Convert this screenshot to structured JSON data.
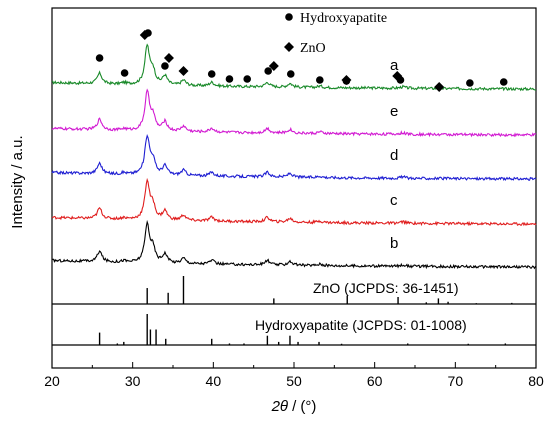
{
  "chart_data": {
    "type": "line",
    "xlabel_var": "2θ",
    "xlabel_unit": "/ (°)",
    "ylabel": "Intensity / a.u.",
    "xlim": [
      20,
      80
    ],
    "x_ticks": [
      "20",
      "30",
      "40",
      "50",
      "60",
      "70",
      "80"
    ],
    "legend": [
      {
        "marker": "circle",
        "label": "Hydroxyapatite"
      },
      {
        "marker": "diamond",
        "label": "ZnO"
      }
    ],
    "series": [
      {
        "name": "a",
        "color": "#1a8a2a",
        "baseline": 0.1,
        "peaks": [
          [
            25.9,
            0.14
          ],
          [
            28.9,
            0.02
          ],
          [
            31.8,
            0.5
          ],
          [
            32.5,
            0.18
          ],
          [
            34.0,
            0.12
          ],
          [
            36.3,
            0.07
          ],
          [
            39.8,
            0.05
          ],
          [
            46.7,
            0.06
          ],
          [
            49.5,
            0.05
          ],
          [
            53.2,
            0.02
          ],
          [
            63.5,
            0.02
          ]
        ]
      },
      {
        "name": "e",
        "color": "#d21bd2",
        "baseline": 0.1,
        "peaks": [
          [
            25.9,
            0.14
          ],
          [
            28.9,
            0.02
          ],
          [
            31.8,
            0.5
          ],
          [
            32.5,
            0.18
          ],
          [
            34.0,
            0.12
          ],
          [
            36.3,
            0.07
          ],
          [
            39.8,
            0.05
          ],
          [
            46.7,
            0.06
          ],
          [
            49.5,
            0.05
          ],
          [
            53.2,
            0.02
          ],
          [
            63.5,
            0.02
          ]
        ]
      },
      {
        "name": "d",
        "color": "#1f1fd2",
        "baseline": 0.1,
        "peaks": [
          [
            25.9,
            0.14
          ],
          [
            28.9,
            0.02
          ],
          [
            31.8,
            0.5
          ],
          [
            32.5,
            0.18
          ],
          [
            34.0,
            0.12
          ],
          [
            36.3,
            0.07
          ],
          [
            39.8,
            0.05
          ],
          [
            46.7,
            0.06
          ],
          [
            49.5,
            0.05
          ],
          [
            53.2,
            0.02
          ],
          [
            63.5,
            0.02
          ]
        ]
      },
      {
        "name": "c",
        "color": "#e01e1e",
        "baseline": 0.1,
        "peaks": [
          [
            25.9,
            0.14
          ],
          [
            28.9,
            0.02
          ],
          [
            31.8,
            0.5
          ],
          [
            32.5,
            0.18
          ],
          [
            34.0,
            0.12
          ],
          [
            36.3,
            0.07
          ],
          [
            39.8,
            0.05
          ],
          [
            46.7,
            0.06
          ],
          [
            49.5,
            0.05
          ],
          [
            53.2,
            0.02
          ],
          [
            63.5,
            0.02
          ]
        ]
      },
      {
        "name": "b",
        "color": "#000000",
        "baseline": 0.1,
        "peaks": [
          [
            25.9,
            0.14
          ],
          [
            28.9,
            0.02
          ],
          [
            31.8,
            0.5
          ],
          [
            32.5,
            0.18
          ],
          [
            34.0,
            0.12
          ],
          [
            36.3,
            0.07
          ],
          [
            39.8,
            0.05
          ],
          [
            46.7,
            0.06
          ],
          [
            49.5,
            0.05
          ],
          [
            53.2,
            0.02
          ],
          [
            63.5,
            0.02
          ]
        ]
      }
    ],
    "hydroxyapatite_markers": [
      25.9,
      29.0,
      31.9,
      34.0,
      39.8,
      42.0,
      44.2,
      46.8,
      49.6,
      53.2,
      56.5,
      63.2,
      71.8,
      76.0
    ],
    "zno_markers": [
      31.5,
      34.5,
      36.3,
      47.5,
      56.5,
      62.8,
      68.0
    ],
    "reference_patterns": [
      {
        "name": "ZnO",
        "label": "ZnO (JCPDS: 36-1451)",
        "lines": [
          [
            31.8,
            0.57
          ],
          [
            34.4,
            0.4
          ],
          [
            36.3,
            1.0
          ],
          [
            47.5,
            0.2
          ],
          [
            56.6,
            0.3
          ],
          [
            62.9,
            0.25
          ],
          [
            66.4,
            0.06
          ],
          [
            67.9,
            0.2
          ],
          [
            69.1,
            0.08
          ],
          [
            72.6,
            0.03
          ],
          [
            77.0,
            0.04
          ]
        ]
      },
      {
        "name": "Hydroxyapatite",
        "label": "Hydroxyapatite (JCPDS: 01-1008)",
        "lines": [
          [
            25.9,
            0.4
          ],
          [
            28.1,
            0.05
          ],
          [
            28.9,
            0.1
          ],
          [
            31.8,
            1.0
          ],
          [
            32.2,
            0.5
          ],
          [
            32.9,
            0.5
          ],
          [
            34.1,
            0.2
          ],
          [
            39.8,
            0.2
          ],
          [
            42.0,
            0.05
          ],
          [
            43.8,
            0.05
          ],
          [
            46.7,
            0.3
          ],
          [
            48.1,
            0.1
          ],
          [
            49.5,
            0.3
          ],
          [
            50.5,
            0.1
          ],
          [
            53.1,
            0.1
          ],
          [
            55.9,
            0.04
          ],
          [
            64.1,
            0.05
          ],
          [
            71.6,
            0.04
          ],
          [
            76.2,
            0.05
          ]
        ]
      }
    ]
  }
}
